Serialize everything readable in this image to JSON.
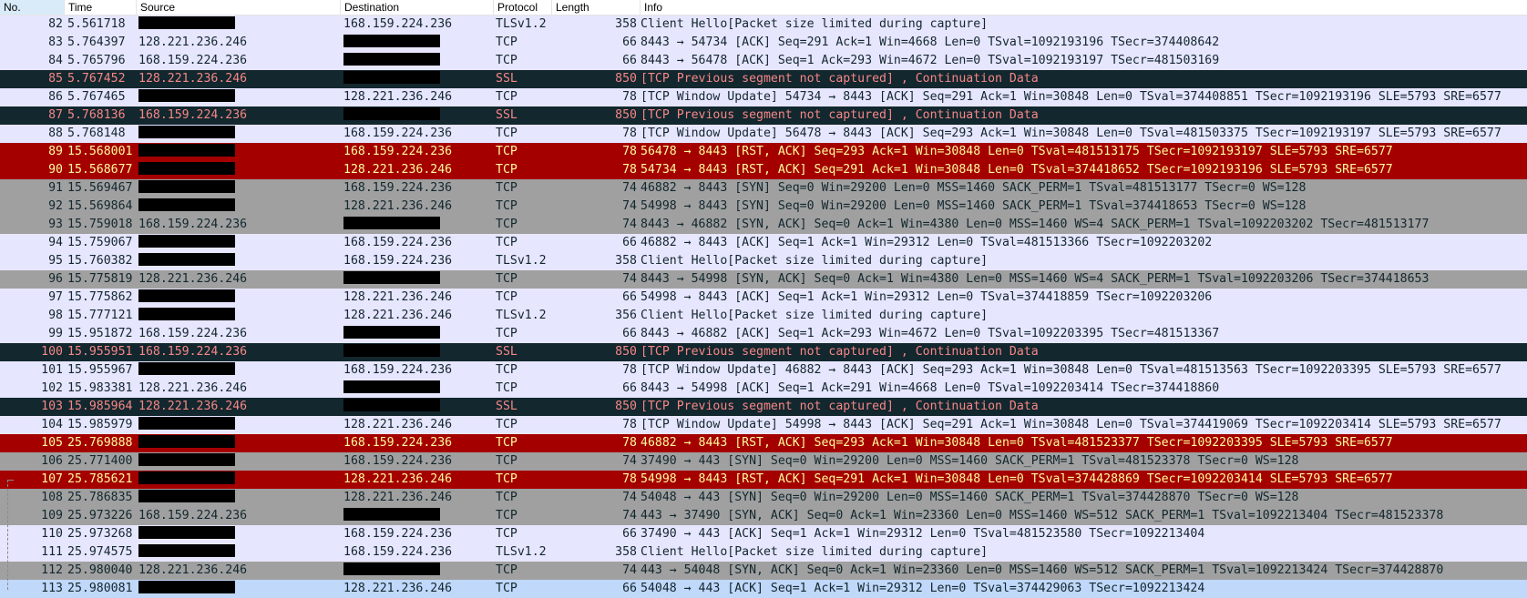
{
  "columns": {
    "no": "No.",
    "time": "Time",
    "source": "Source",
    "destination": "Destination",
    "protocol": "Protocol",
    "length": "Length",
    "info": "Info"
  },
  "colors": {
    "tcp": "#e7e6ff",
    "bad_tcp_bg": "#12272e",
    "bad_tcp_fg": "#f78787",
    "rst_bg": "#a40000",
    "rst_fg": "#fffc9c",
    "syn": "#a0a0a0",
    "selected": "#c0d8fa"
  },
  "selected_packet": "113",
  "packets": [
    {
      "no": "82",
      "time": "5.561718",
      "source": "",
      "destination": "168.159.224.236",
      "protocol": "TLSv1.2",
      "length": "358",
      "info": "Client Hello[Packet size limited during capture]",
      "style": "tcp"
    },
    {
      "no": "83",
      "time": "5.764397",
      "source": "128.221.236.246",
      "destination": "",
      "protocol": "TCP",
      "length": "66",
      "info": "8443 → 54734 [ACK] Seq=291 Ack=1 Win=4668 Len=0 TSval=1092193196 TSecr=374408642",
      "style": "tcp"
    },
    {
      "no": "84",
      "time": "5.765796",
      "source": "168.159.224.236",
      "destination": "",
      "protocol": "TCP",
      "length": "66",
      "info": "8443 → 56478 [ACK] Seq=1 Ack=293 Win=4672 Len=0 TSval=1092193197 TSecr=481503169",
      "style": "tcp"
    },
    {
      "no": "85",
      "time": "5.767452",
      "source": "128.221.236.246",
      "destination": "",
      "protocol": "SSL",
      "length": "850",
      "info": "[TCP Previous segment not captured] , Continuation Data",
      "style": "bad"
    },
    {
      "no": "86",
      "time": "5.767465",
      "source": "",
      "destination": "128.221.236.246",
      "protocol": "TCP",
      "length": "78",
      "info": "[TCP Window Update] 54734 → 8443 [ACK] Seq=291 Ack=1 Win=30848 Len=0 TSval=374408851 TSecr=1092193196 SLE=5793 SRE=6577",
      "style": "tcp"
    },
    {
      "no": "87",
      "time": "5.768136",
      "source": "168.159.224.236",
      "destination": "",
      "protocol": "SSL",
      "length": "850",
      "info": "[TCP Previous segment not captured] , Continuation Data",
      "style": "bad"
    },
    {
      "no": "88",
      "time": "5.768148",
      "source": "",
      "destination": "168.159.224.236",
      "protocol": "TCP",
      "length": "78",
      "info": "[TCP Window Update] 56478 → 8443 [ACK] Seq=293 Ack=1 Win=30848 Len=0 TSval=481503375 TSecr=1092193197 SLE=5793 SRE=6577",
      "style": "tcp"
    },
    {
      "no": "89",
      "time": "15.568001",
      "source": "",
      "destination": "168.159.224.236",
      "protocol": "TCP",
      "length": "78",
      "info": "56478 → 8443 [RST, ACK] Seq=293 Ack=1 Win=30848 Len=0 TSval=481513175 TSecr=1092193197 SLE=5793 SRE=6577",
      "style": "rst"
    },
    {
      "no": "90",
      "time": "15.568677",
      "source": "",
      "destination": "128.221.236.246",
      "protocol": "TCP",
      "length": "78",
      "info": "54734 → 8443 [RST, ACK] Seq=291 Ack=1 Win=30848 Len=0 TSval=374418652 TSecr=1092193196 SLE=5793 SRE=6577",
      "style": "rst"
    },
    {
      "no": "91",
      "time": "15.569467",
      "source": "",
      "destination": "168.159.224.236",
      "protocol": "TCP",
      "length": "74",
      "info": "46882 → 8443 [SYN] Seq=0 Win=29200 Len=0 MSS=1460 SACK_PERM=1 TSval=481513177 TSecr=0 WS=128",
      "style": "syn"
    },
    {
      "no": "92",
      "time": "15.569864",
      "source": "",
      "destination": "128.221.236.246",
      "protocol": "TCP",
      "length": "74",
      "info": "54998 → 8443 [SYN] Seq=0 Win=29200 Len=0 MSS=1460 SACK_PERM=1 TSval=374418653 TSecr=0 WS=128",
      "style": "syn"
    },
    {
      "no": "93",
      "time": "15.759018",
      "source": "168.159.224.236",
      "destination": "",
      "protocol": "TCP",
      "length": "74",
      "info": "8443 → 46882 [SYN, ACK] Seq=0 Ack=1 Win=4380 Len=0 MSS=1460 WS=4 SACK_PERM=1 TSval=1092203202 TSecr=481513177",
      "style": "syn"
    },
    {
      "no": "94",
      "time": "15.759067",
      "source": "",
      "destination": "168.159.224.236",
      "protocol": "TCP",
      "length": "66",
      "info": "46882 → 8443 [ACK] Seq=1 Ack=1 Win=29312 Len=0 TSval=481513366 TSecr=1092203202",
      "style": "tcp"
    },
    {
      "no": "95",
      "time": "15.760382",
      "source": "",
      "destination": "168.159.224.236",
      "protocol": "TLSv1.2",
      "length": "358",
      "info": "Client Hello[Packet size limited during capture]",
      "style": "tcp"
    },
    {
      "no": "96",
      "time": "15.775819",
      "source": "128.221.236.246",
      "destination": "",
      "protocol": "TCP",
      "length": "74",
      "info": "8443 → 54998 [SYN, ACK] Seq=0 Ack=1 Win=4380 Len=0 MSS=1460 WS=4 SACK_PERM=1 TSval=1092203206 TSecr=374418653",
      "style": "syn"
    },
    {
      "no": "97",
      "time": "15.775862",
      "source": "",
      "destination": "128.221.236.246",
      "protocol": "TCP",
      "length": "66",
      "info": "54998 → 8443 [ACK] Seq=1 Ack=1 Win=29312 Len=0 TSval=374418859 TSecr=1092203206",
      "style": "tcp"
    },
    {
      "no": "98",
      "time": "15.777121",
      "source": "",
      "destination": "128.221.236.246",
      "protocol": "TLSv1.2",
      "length": "356",
      "info": "Client Hello[Packet size limited during capture]",
      "style": "tcp"
    },
    {
      "no": "99",
      "time": "15.951872",
      "source": "168.159.224.236",
      "destination": "",
      "protocol": "TCP",
      "length": "66",
      "info": "8443 → 46882 [ACK] Seq=1 Ack=293 Win=4672 Len=0 TSval=1092203395 TSecr=481513367",
      "style": "tcp"
    },
    {
      "no": "100",
      "time": "15.955951",
      "source": "168.159.224.236",
      "destination": "",
      "protocol": "SSL",
      "length": "850",
      "info": "[TCP Previous segment not captured] , Continuation Data",
      "style": "bad"
    },
    {
      "no": "101",
      "time": "15.955967",
      "source": "",
      "destination": "168.159.224.236",
      "protocol": "TCP",
      "length": "78",
      "info": "[TCP Window Update] 46882 → 8443 [ACK] Seq=293 Ack=1 Win=30848 Len=0 TSval=481513563 TSecr=1092203395 SLE=5793 SRE=6577",
      "style": "tcp"
    },
    {
      "no": "102",
      "time": "15.983381",
      "source": "128.221.236.246",
      "destination": "",
      "protocol": "TCP",
      "length": "66",
      "info": "8443 → 54998 [ACK] Seq=1 Ack=291 Win=4668 Len=0 TSval=1092203414 TSecr=374418860",
      "style": "tcp"
    },
    {
      "no": "103",
      "time": "15.985964",
      "source": "128.221.236.246",
      "destination": "",
      "protocol": "SSL",
      "length": "850",
      "info": "[TCP Previous segment not captured] , Continuation Data",
      "style": "bad"
    },
    {
      "no": "104",
      "time": "15.985979",
      "source": "",
      "destination": "128.221.236.246",
      "protocol": "TCP",
      "length": "78",
      "info": "[TCP Window Update] 54998 → 8443 [ACK] Seq=291 Ack=1 Win=30848 Len=0 TSval=374419069 TSecr=1092203414 SLE=5793 SRE=6577",
      "style": "tcp"
    },
    {
      "no": "105",
      "time": "25.769888",
      "source": "",
      "destination": "168.159.224.236",
      "protocol": "TCP",
      "length": "78",
      "info": "46882 → 8443 [RST, ACK] Seq=293 Ack=1 Win=30848 Len=0 TSval=481523377 TSecr=1092203395 SLE=5793 SRE=6577",
      "style": "rst"
    },
    {
      "no": "106",
      "time": "25.771400",
      "source": "",
      "destination": "168.159.224.236",
      "protocol": "TCP",
      "length": "74",
      "info": "37490 → 443 [SYN] Seq=0 Win=29200 Len=0 MSS=1460 SACK_PERM=1 TSval=481523378 TSecr=0 WS=128",
      "style": "syn"
    },
    {
      "no": "107",
      "time": "25.785621",
      "source": "",
      "destination": "128.221.236.246",
      "protocol": "TCP",
      "length": "78",
      "info": "54998 → 8443 [RST, ACK] Seq=291 Ack=1 Win=30848 Len=0 TSval=374428869 TSecr=1092203414 SLE=5793 SRE=6577",
      "style": "rst"
    },
    {
      "no": "108",
      "time": "25.786835",
      "source": "",
      "destination": "128.221.236.246",
      "protocol": "TCP",
      "length": "74",
      "info": "54048 → 443 [SYN] Seq=0 Win=29200 Len=0 MSS=1460 SACK_PERM=1 TSval=374428870 TSecr=0 WS=128",
      "style": "syn"
    },
    {
      "no": "109",
      "time": "25.973226",
      "source": "168.159.224.236",
      "destination": "",
      "protocol": "TCP",
      "length": "74",
      "info": "443 → 37490 [SYN, ACK] Seq=0 Ack=1 Win=23360 Len=0 MSS=1460 WS=512 SACK_PERM=1 TSval=1092213404 TSecr=481523378",
      "style": "syn"
    },
    {
      "no": "110",
      "time": "25.973268",
      "source": "",
      "destination": "168.159.224.236",
      "protocol": "TCP",
      "length": "66",
      "info": "37490 → 443 [ACK] Seq=1 Ack=1 Win=29312 Len=0 TSval=481523580 TSecr=1092213404",
      "style": "tcp"
    },
    {
      "no": "111",
      "time": "25.974575",
      "source": "",
      "destination": "168.159.224.236",
      "protocol": "TLSv1.2",
      "length": "358",
      "info": "Client Hello[Packet size limited during capture]",
      "style": "tcp"
    },
    {
      "no": "112",
      "time": "25.980040",
      "source": "128.221.236.246",
      "destination": "",
      "protocol": "TCP",
      "length": "74",
      "info": "443 → 54048 [SYN, ACK] Seq=0 Ack=1 Win=23360 Len=0 MSS=1460 WS=512 SACK_PERM=1 TSval=1092213424 TSecr=374428870",
      "style": "syn"
    },
    {
      "no": "113",
      "time": "25.980081",
      "source": "",
      "destination": "128.221.236.246",
      "protocol": "TCP",
      "length": "66",
      "info": "54048 → 443 [ACK] Seq=1 Ack=1 Win=29312 Len=0 TSval=374429063 TSecr=1092213424",
      "style": "sel"
    }
  ]
}
